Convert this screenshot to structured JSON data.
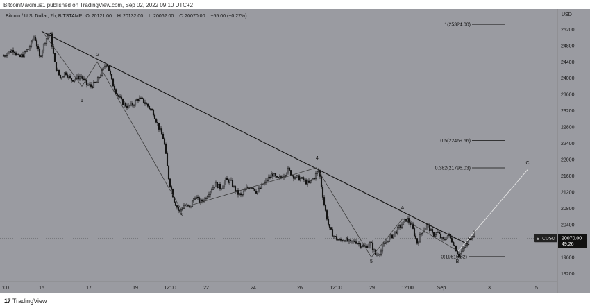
{
  "header": {
    "published": "BitcoinMaximus1 published on TradingView.com, Sep 02, 2022 09:10 UTC+2"
  },
  "legend": {
    "symbol": "Bitcoin / U.S. Dollar, 2h, BITSTAMP",
    "open_label": "O",
    "open": "20121.00",
    "high_label": "H",
    "high": "20132.00",
    "low_label": "L",
    "low": "20062.00",
    "close_label": "C",
    "close": "20070.00",
    "change": "−55.00 (−0.27%)"
  },
  "price_badge": {
    "ticker": "BTCUSD",
    "price": "20070.00",
    "countdown": "49:26"
  },
  "footer": {
    "logo_glyph": "17",
    "brand": "TradingView"
  },
  "colors": {
    "plot_bg": "#9a9ba1",
    "axis_bg": "#9a9ba1",
    "candle": "#111111",
    "trendline": "#1a1a1a",
    "wave_line": "#3c3c3c",
    "projection_line": "#e6e6e6"
  },
  "chart_data": {
    "type": "candlestick",
    "currency_label": "USD",
    "ylim": [
      19000,
      25700
    ],
    "y_ticks": [
      19200,
      19600,
      20000,
      20400,
      20800,
      21200,
      21600,
      22000,
      22400,
      22800,
      23200,
      23600,
      24000,
      24400,
      24800,
      25200
    ],
    "x_ticks": [
      ":00",
      "15",
      "17",
      "19",
      "12:00",
      "22",
      "24",
      "26",
      "12:00",
      "29",
      "12:00",
      "Sep",
      "3",
      "5"
    ],
    "close_path": [
      24550,
      24650,
      24700,
      24500,
      24600,
      24750,
      25050,
      24500,
      24900,
      25150,
      24300,
      24000,
      24150,
      23950,
      24000,
      24050,
      23850,
      23800,
      23900,
      24150,
      24400,
      23900,
      23600,
      23400,
      23300,
      23350,
      23500,
      23450,
      23300,
      23150,
      22800,
      22500,
      21500,
      21000,
      20700,
      20900,
      20800,
      21100,
      20950,
      21050,
      21250,
      21400,
      21300,
      21500,
      21450,
      21200,
      21100,
      21300,
      21350,
      21200,
      21350,
      21500,
      21650,
      21500,
      21600,
      21750,
      21600,
      21550,
      21500,
      21400,
      21550,
      21750,
      20900,
      20300,
      20100,
      20000,
      20050,
      19950,
      20000,
      19900,
      19850,
      19950,
      19650,
      19750,
      20000,
      20100,
      20250,
      20400,
      20550,
      20350,
      19950,
      20250,
      20400,
      20150,
      20200,
      20000,
      20150,
      19950,
      19650,
      19800,
      20050,
      20200
    ],
    "fib_levels": [
      {
        "ratio": "1",
        "value": 25324.0,
        "label": "1(25324.00)"
      },
      {
        "ratio": "0.5",
        "value": 22469.66,
        "label": "0.5(22469.66)"
      },
      {
        "ratio": "0.382",
        "value": 21796.03,
        "label": "0.382(21796.03)"
      },
      {
        "ratio": "0",
        "value": 19615.82,
        "label": "0(19615.82)"
      }
    ],
    "wave_labels": [
      "1",
      "2",
      "3",
      "4",
      "5",
      "A",
      "B",
      "C"
    ],
    "wave_points": [
      {
        "label": "",
        "price": 25100
      },
      {
        "label": "1",
        "price": 23800
      },
      {
        "label": "2",
        "price": 24400
      },
      {
        "label": "3",
        "price": 20800
      },
      {
        "label": "4",
        "price": 21800
      },
      {
        "label": "5",
        "price": 19600
      },
      {
        "label": "A",
        "price": 20550
      },
      {
        "label": "B",
        "price": 19750
      },
      {
        "label": "C",
        "price": 21750
      }
    ],
    "trendline": {
      "start_price": 25150,
      "end_price": 19900
    }
  }
}
